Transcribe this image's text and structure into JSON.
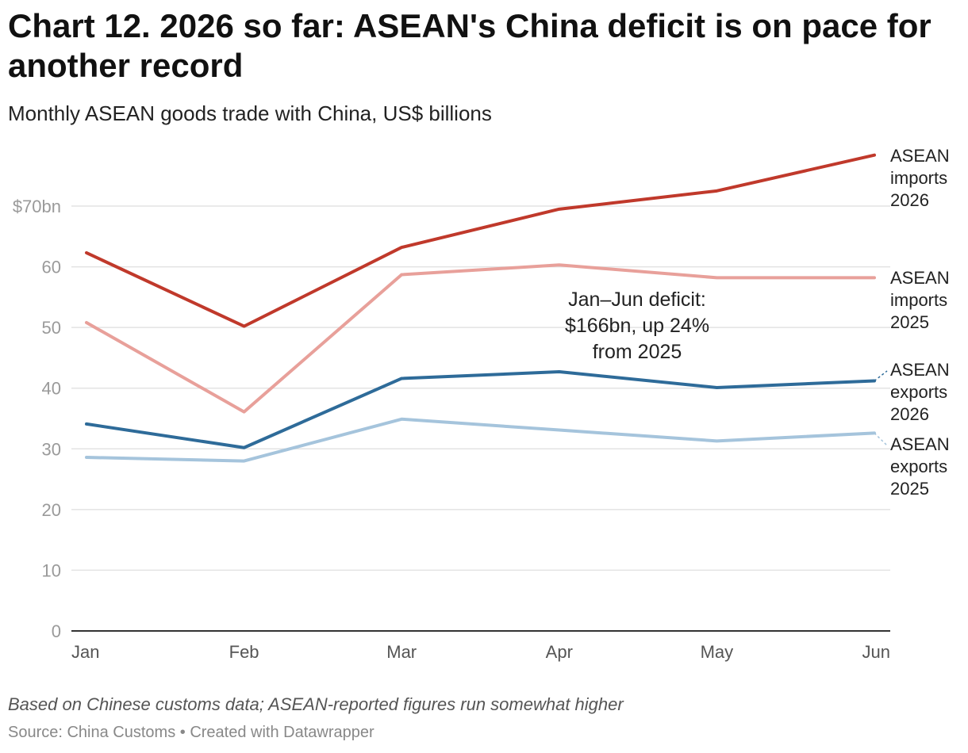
{
  "title": "Chart 12. 2026 so far: ASEAN's China deficit is on pace for another record",
  "subtitle": "Monthly ASEAN goods trade with China, US$ billions",
  "note": "Based on Chinese customs data; ASEAN-reported figures run somewhat higher",
  "source": "Source: China Customs • Created with Datawrapper",
  "chart_data": {
    "type": "line",
    "categories": [
      "Jan",
      "Feb",
      "Mar",
      "Apr",
      "May",
      "Jun"
    ],
    "ylim": [
      0,
      80
    ],
    "yticks": [
      0,
      10,
      20,
      30,
      40,
      50,
      60,
      70
    ],
    "ytick_labels": [
      "0",
      "10",
      "20",
      "30",
      "40",
      "50",
      "60",
      "$70bn"
    ],
    "grid": true,
    "series": [
      {
        "name": "ASEAN imports 2026",
        "label_lines": [
          "ASEAN",
          "imports",
          "2026"
        ],
        "color": "#c0392b",
        "values": [
          62.3,
          50.2,
          63.2,
          69.5,
          72.5,
          78.4
        ]
      },
      {
        "name": "ASEAN imports 2025",
        "label_lines": [
          "ASEAN",
          "imports",
          "2025"
        ],
        "color": "#e8a09a",
        "values": [
          50.8,
          36.1,
          58.7,
          60.3,
          58.2,
          58.2
        ]
      },
      {
        "name": "ASEAN exports 2026",
        "label_lines": [
          "ASEAN",
          "exports",
          "2026"
        ],
        "color": "#2e6b99",
        "values": [
          34.1,
          30.2,
          41.6,
          42.7,
          40.1,
          41.2
        ]
      },
      {
        "name": "ASEAN exports 2025",
        "label_lines": [
          "ASEAN",
          "exports",
          "2025"
        ],
        "color": "#a5c4dc",
        "values": [
          28.6,
          28.0,
          34.9,
          33.1,
          31.3,
          32.6
        ]
      }
    ],
    "annotation": {
      "lines": [
        "Jan–Jun deficit:",
        "$166bn, up 24%",
        "from 2025"
      ]
    }
  }
}
